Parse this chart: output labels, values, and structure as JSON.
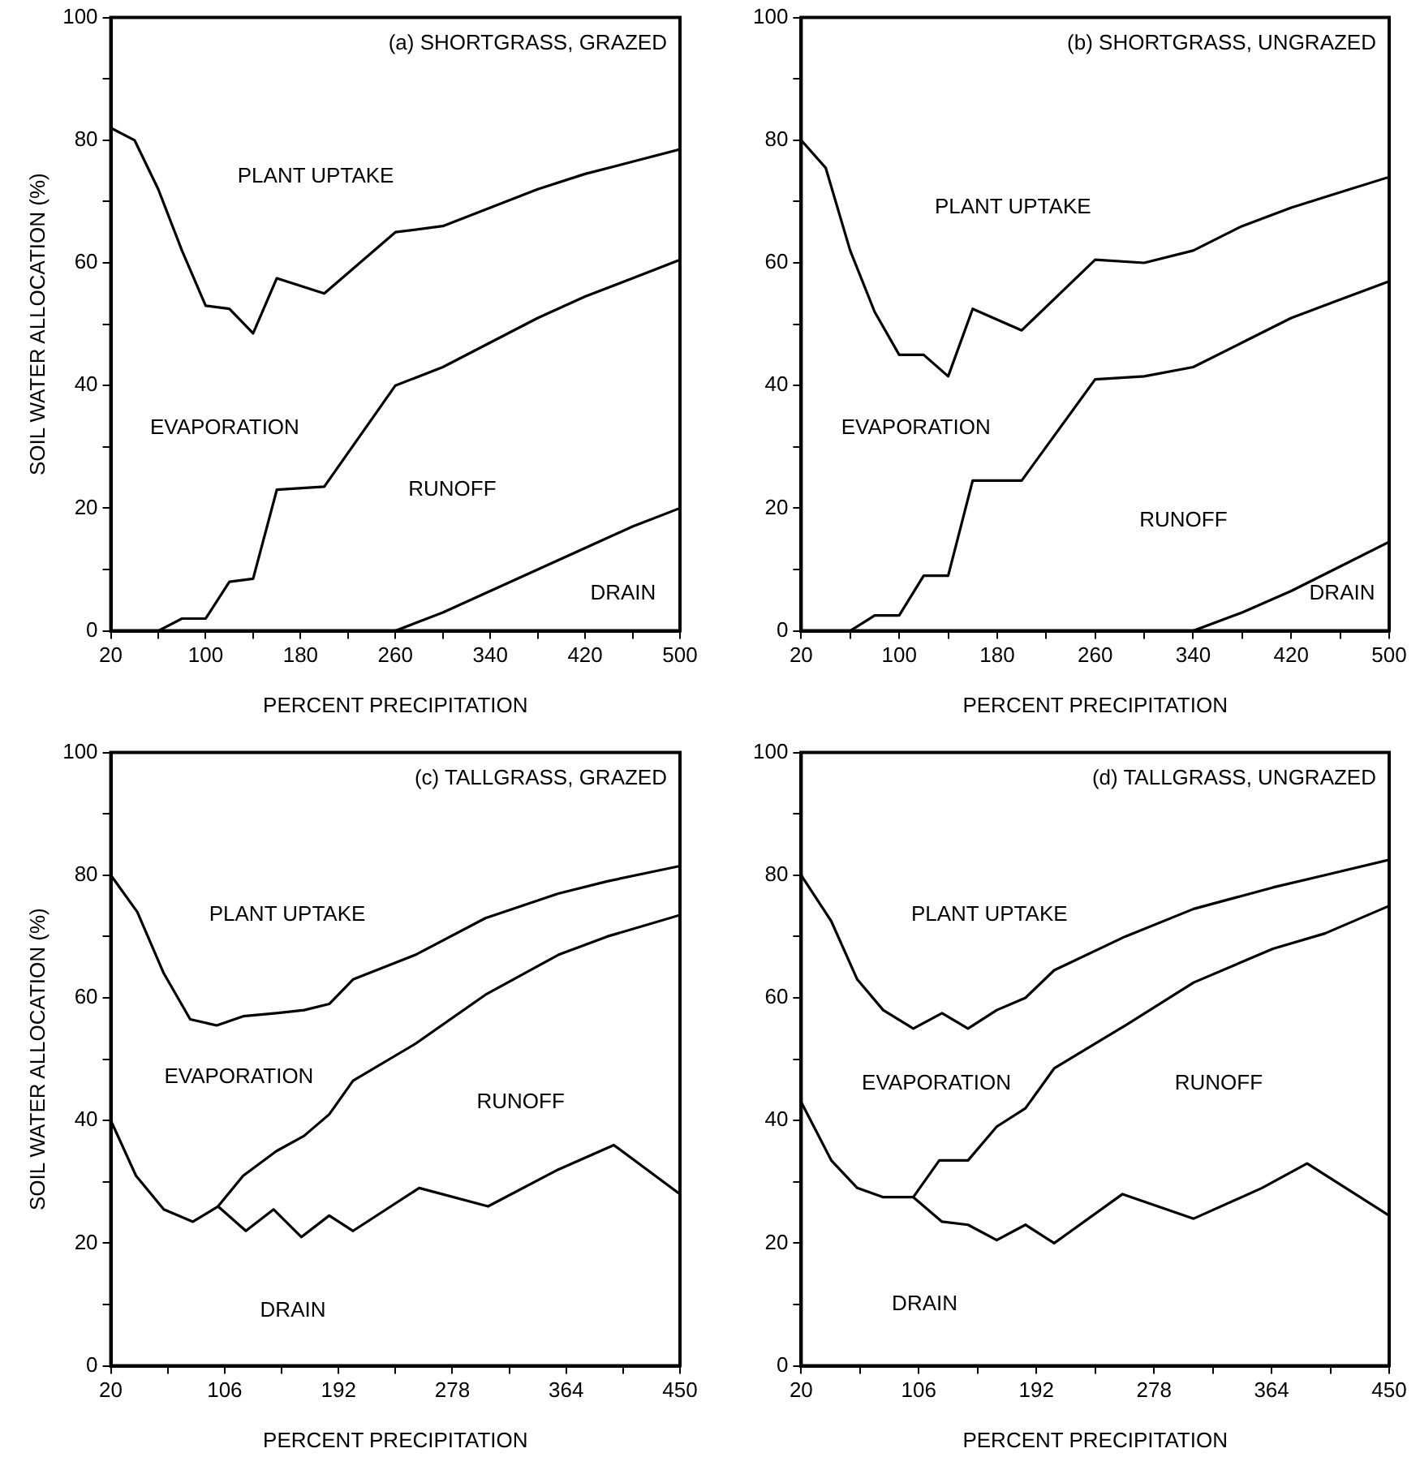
{
  "chart_data": [
    {
      "type": "line",
      "title": "(a) SHORTGRASS, GRAZED",
      "xlabel": "PERCENT PRECIPITATION",
      "ylabel": "SOIL WATER ALLOCATION (%)",
      "xlim": [
        20,
        500
      ],
      "ylim": [
        0,
        100
      ],
      "xticks": [
        20,
        {
          "value": 60,
          "label": null
        },
        100,
        {
          "value": 140,
          "label": null
        },
        180,
        {
          "value": 220,
          "label": null
        },
        260,
        {
          "value": 300,
          "label": null
        },
        340,
        {
          "value": 380,
          "label": null
        },
        420,
        {
          "value": 460,
          "label": null
        },
        500
      ],
      "yticks": [
        0,
        {
          "value": 10,
          "label": null
        },
        20,
        {
          "value": 30,
          "label": null
        },
        40,
        {
          "value": 50,
          "label": null
        },
        60,
        {
          "value": 70,
          "label": null
        },
        80,
        {
          "value": 90,
          "label": null
        },
        100
      ],
      "grid": false,
      "legend": false,
      "marker": "none",
      "line_style": "solid",
      "series": [
        {
          "color": "#000000",
          "x": [
            20,
            40,
            60,
            80,
            100,
            120,
            140,
            160,
            200,
            260,
            300,
            340,
            380,
            420,
            460,
            500
          ],
          "values": [
            82,
            80,
            72,
            62,
            53,
            52.5,
            48.5,
            57.5,
            55,
            65,
            66,
            69,
            72,
            74.5,
            76.5,
            78.5
          ]
        },
        {
          "color": "#000000",
          "x": [
            60,
            80,
            100,
            120,
            140,
            160,
            200,
            260,
            300,
            340,
            380,
            420,
            460,
            500
          ],
          "values": [
            0,
            2,
            2,
            8,
            8.5,
            23,
            23.5,
            40,
            43,
            47,
            51,
            54.5,
            57.5,
            60.5
          ]
        },
        {
          "color": "#000000",
          "x": [
            260,
            300,
            340,
            380,
            420,
            460,
            500
          ],
          "values": [
            0,
            3,
            6.5,
            10,
            13.5,
            17,
            20
          ]
        }
      ],
      "annotations": [
        "PLANT UPTAKE",
        "EVAPORATION",
        "RUNOFF",
        "DRAIN"
      ]
    },
    {
      "type": "line",
      "title": "(b) SHORTGRASS, UNGRAZED",
      "xlabel": "PERCENT PRECIPITATION",
      "xlim": [
        20,
        500
      ],
      "ylim": [
        0,
        100
      ],
      "xticks": [
        20,
        {
          "value": 60,
          "label": null
        },
        100,
        {
          "value": 140,
          "label": null
        },
        180,
        {
          "value": 220,
          "label": null
        },
        260,
        {
          "value": 300,
          "label": null
        },
        340,
        {
          "value": 380,
          "label": null
        },
        420,
        {
          "value": 460,
          "label": null
        },
        500
      ],
      "yticks": [
        0,
        {
          "value": 10,
          "label": null
        },
        20,
        {
          "value": 30,
          "label": null
        },
        40,
        {
          "value": 50,
          "label": null
        },
        60,
        {
          "value": 70,
          "label": null
        },
        80,
        {
          "value": 90,
          "label": null
        },
        100
      ],
      "grid": false,
      "legend": false,
      "marker": "none",
      "line_style": "solid",
      "series": [
        {
          "color": "#000000",
          "x": [
            20,
            40,
            60,
            80,
            100,
            120,
            140,
            160,
            200,
            260,
            300,
            340,
            380,
            420,
            460,
            500
          ],
          "values": [
            80,
            75.5,
            62,
            52,
            45,
            45,
            41.5,
            52.5,
            49,
            60.5,
            60,
            62,
            66,
            69,
            71.5,
            74
          ]
        },
        {
          "color": "#000000",
          "x": [
            60,
            80,
            100,
            120,
            140,
            160,
            200,
            260,
            300,
            340,
            380,
            420,
            460,
            500
          ],
          "values": [
            0,
            2.5,
            2.5,
            9,
            9,
            24.5,
            24.5,
            41,
            41.5,
            43,
            47,
            51,
            54,
            57
          ]
        },
        {
          "color": "#000000",
          "x": [
            340,
            380,
            420,
            460,
            500
          ],
          "values": [
            0,
            3,
            6.5,
            10.5,
            14.5
          ]
        }
      ],
      "annotations": [
        "PLANT UPTAKE",
        "EVAPORATION",
        "RUNOFF",
        "DRAIN"
      ]
    },
    {
      "type": "line",
      "title": "(c) TALLGRASS, GRAZED",
      "xlabel": "PERCENT PRECIPITATION",
      "ylabel": "SOIL WATER ALLOCATION (%)",
      "xlim": [
        20,
        450
      ],
      "ylim": [
        0,
        100
      ],
      "xticks": [
        20,
        {
          "value": 63,
          "label": null
        },
        106,
        {
          "value": 149,
          "label": null
        },
        192,
        {
          "value": 235,
          "label": null
        },
        278,
        {
          "value": 321,
          "label": null
        },
        364,
        {
          "value": 407,
          "label": null
        },
        450
      ],
      "yticks": [
        0,
        {
          "value": 10,
          "label": null
        },
        20,
        {
          "value": 30,
          "label": null
        },
        40,
        {
          "value": 50,
          "label": null
        },
        60,
        {
          "value": 70,
          "label": null
        },
        80,
        {
          "value": 90,
          "label": null
        },
        100
      ],
      "grid": false,
      "legend": false,
      "marker": "none",
      "line_style": "solid",
      "series": [
        {
          "color": "#000000",
          "x": [
            20,
            40,
            60,
            80,
            100,
            120,
            145,
            166,
            185,
            203,
            250,
            303,
            358,
            395,
            450
          ],
          "values": [
            80,
            74,
            64,
            56.5,
            55.5,
            57,
            57.5,
            58,
            59,
            63,
            67,
            73,
            77,
            79,
            81.5
          ]
        },
        {
          "color": "#000000",
          "x": [
            101,
            120,
            145,
            166,
            185,
            203,
            250,
            303,
            358,
            395,
            450
          ],
          "values": [
            26,
            31,
            35,
            37.5,
            41,
            46.5,
            52.5,
            60.5,
            67,
            70,
            73.5
          ]
        },
        {
          "color": "#000000",
          "x": [
            20,
            39,
            60,
            82,
            101,
            122,
            143,
            164,
            185,
            203,
            253,
            305,
            358,
            400,
            450
          ],
          "values": [
            40,
            31,
            25.5,
            23.5,
            26,
            22,
            25.5,
            21,
            24.5,
            22,
            29,
            26,
            32,
            36,
            28
          ]
        }
      ],
      "annotations": [
        "PLANT UPTAKE",
        "EVAPORATION",
        "RUNOFF",
        "DRAIN"
      ]
    },
    {
      "type": "line",
      "title": "(d) TALLGRASS, UNGRAZED",
      "xlabel": "PERCENT PRECIPITATION",
      "xlim": [
        20,
        450
      ],
      "ylim": [
        0,
        100
      ],
      "xticks": [
        20,
        {
          "value": 63,
          "label": null
        },
        106,
        {
          "value": 149,
          "label": null
        },
        192,
        {
          "value": 235,
          "label": null
        },
        278,
        {
          "value": 321,
          "label": null
        },
        364,
        {
          "value": 407,
          "label": null
        },
        450
      ],
      "yticks": [
        0,
        {
          "value": 10,
          "label": null
        },
        20,
        {
          "value": 30,
          "label": null
        },
        40,
        {
          "value": 50,
          "label": null
        },
        60,
        {
          "value": 70,
          "label": null
        },
        80,
        {
          "value": 90,
          "label": null
        },
        100
      ],
      "grid": false,
      "legend": false,
      "marker": "none",
      "line_style": "solid",
      "series": [
        {
          "color": "#000000",
          "x": [
            20,
            42,
            61,
            80,
            102,
            123,
            142,
            163,
            184,
            205,
            257,
            307,
            365,
            403,
            450
          ],
          "values": [
            80,
            72.5,
            63,
            58,
            55,
            57.5,
            55,
            58,
            60,
            64.5,
            70,
            74.5,
            78,
            80,
            82.5
          ]
        },
        {
          "color": "#000000",
          "x": [
            102,
            121,
            142,
            163,
            184,
            205,
            257,
            307,
            365,
            403,
            450
          ],
          "values": [
            27.5,
            33.5,
            33.5,
            39,
            42,
            48.5,
            55.5,
            62.5,
            68,
            70.5,
            75
          ]
        },
        {
          "color": "#000000",
          "x": [
            20,
            42,
            61,
            80,
            102,
            123,
            142,
            163,
            184,
            205,
            255,
            307,
            357,
            390,
            450
          ],
          "values": [
            43,
            33.5,
            29,
            27.5,
            27.5,
            23.5,
            23,
            20.5,
            23,
            20,
            28,
            24,
            29,
            33,
            24.5
          ]
        }
      ],
      "annotations": [
        "PLANT UPTAKE",
        "EVAPORATION",
        "RUNOFF",
        "DRAIN"
      ]
    }
  ]
}
